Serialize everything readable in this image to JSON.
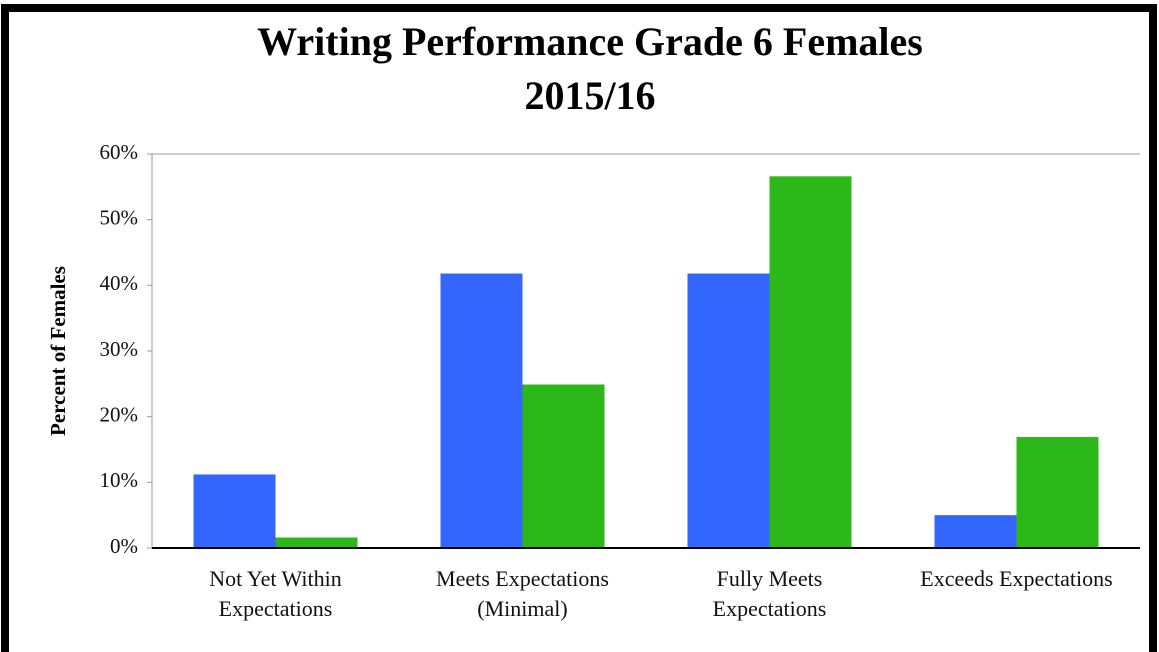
{
  "chart_data": {
    "type": "bar",
    "title": [
      "Writing Performance Grade 6 Females",
      "2015/16"
    ],
    "y_label": "Percent of Females",
    "categories": [
      "Not Yet Within Expectations",
      "Meets Expectations (Minimal)",
      "Fully Meets Expectations",
      "Exceeds Expectations"
    ],
    "series": [
      {
        "color": "#3366ff",
        "values": [
          11.2,
          41.8,
          41.8,
          5.0
        ]
      },
      {
        "color": "#2db81a",
        "values": [
          1.6,
          24.9,
          56.6,
          16.9
        ]
      }
    ],
    "ylim": [
      0,
      60
    ],
    "yticks": [
      {
        "value": 0,
        "label": "0%"
      },
      {
        "value": 10,
        "label": "10%"
      },
      {
        "value": 20,
        "label": "20%"
      },
      {
        "value": 30,
        "label": "30%"
      },
      {
        "value": 40,
        "label": "40%"
      },
      {
        "value": 50,
        "label": "50%"
      },
      {
        "value": 60,
        "label": "60%"
      }
    ],
    "grid": false
  }
}
